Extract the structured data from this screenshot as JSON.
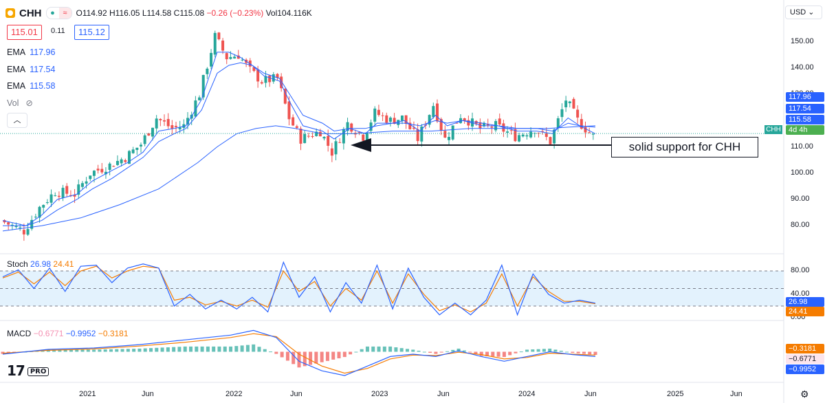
{
  "header": {
    "symbol": "CHH",
    "ohlc": {
      "o": "O114.92",
      "h": "H116.05",
      "l": "L114.58",
      "c": "C115.08",
      "chg": "−0.26 (−0.23%)",
      "vol": "Vol104.116K"
    },
    "bid": "115.01",
    "spread": "0.11",
    "ask": "115.12",
    "currency": "USD",
    "collapse_icon": "chevron-up-icon",
    "eye_icon": "eye-off-icon"
  },
  "legend": {
    "ema1": {
      "label": "EMA",
      "value": "117.96"
    },
    "ema2": {
      "label": "EMA",
      "value": "117.54"
    },
    "ema3": {
      "label": "EMA",
      "value": "115.58"
    },
    "vol": "Vol"
  },
  "colors": {
    "up": "#26a69a",
    "down": "#ef5350",
    "ema": "#2962ff",
    "stoch_k": "#2962ff",
    "stoch_d": "#f57c00",
    "macd": "#2962ff",
    "signal": "#f57c00",
    "stoch_band": "#e3f2fd"
  },
  "axis_tags": {
    "ema_top": "117.96",
    "ema_mid": "117.54",
    "ema_low": "115.58",
    "price": "CHH",
    "price_sub": "4d 4h",
    "stoch_k": "26.98",
    "stoch_d": "24.41",
    "macd_hist": "−0.3181",
    "macd_line": "−0.6771",
    "signal_line": "−0.9952"
  },
  "annotation": "solid support for CHH",
  "indicators": {
    "stoch": {
      "label": "Stoch",
      "k": "26.98",
      "d": "24.41"
    },
    "macd": {
      "label": "MACD",
      "v1": "−0.6771",
      "v2": "−0.9952",
      "v3": "−0.3181"
    }
  },
  "brand": {
    "logo": "17",
    "pro": "PRO"
  },
  "settings_icon": "gear-icon",
  "chart_data": [
    {
      "type": "candlestick",
      "title": "CHH",
      "y_ticks": [
        "150.00",
        "140.00",
        "130.00",
        "120.00",
        "110.00",
        "100.00",
        "90.00",
        "80.00"
      ],
      "ylim": [
        73,
        158
      ],
      "x_ticks": [
        "2021",
        "Jun",
        "2022",
        "Jun",
        "2023",
        "Jun",
        "2024",
        "Jun",
        "2025",
        "Jun"
      ],
      "close_path": [
        [
          0,
          82
        ],
        [
          6,
          78
        ],
        [
          10,
          87
        ],
        [
          14,
          93
        ],
        [
          19,
          92
        ],
        [
          23,
          100
        ],
        [
          28,
          103
        ],
        [
          32,
          106
        ],
        [
          36,
          111
        ],
        [
          40,
          121
        ],
        [
          44,
          117
        ],
        [
          47,
          118
        ],
        [
          51,
          130
        ],
        [
          55,
          152
        ],
        [
          58,
          144
        ],
        [
          61,
          145
        ],
        [
          64,
          139
        ],
        [
          67,
          135
        ],
        [
          71,
          136
        ],
        [
          74,
          121
        ],
        [
          77,
          113
        ],
        [
          82,
          116
        ],
        [
          85,
          108
        ],
        [
          89,
          119
        ],
        [
          93,
          114
        ],
        [
          96,
          123
        ],
        [
          100,
          120
        ],
        [
          103,
          121
        ],
        [
          107,
          113
        ],
        [
          111,
          126
        ],
        [
          114,
          113
        ],
        [
          118,
          122
        ],
        [
          123,
          117
        ],
        [
          127,
          118
        ],
        [
          132,
          114
        ],
        [
          137,
          117
        ],
        [
          141,
          112
        ],
        [
          145,
          128
        ],
        [
          148,
          120
        ],
        [
          152,
          114
        ]
      ],
      "ema_short": [
        [
          0,
          82
        ],
        [
          6,
          80
        ],
        [
          10,
          84
        ],
        [
          14,
          90
        ],
        [
          19,
          92
        ],
        [
          23,
          97
        ],
        [
          28,
          101
        ],
        [
          32,
          104
        ],
        [
          36,
          108
        ],
        [
          40,
          116
        ],
        [
          44,
          117
        ],
        [
          47,
          118
        ],
        [
          51,
          128
        ],
        [
          55,
          146
        ],
        [
          58,
          146
        ],
        [
          61,
          144
        ],
        [
          64,
          141
        ],
        [
          67,
          137
        ],
        [
          71,
          135
        ],
        [
          74,
          126
        ],
        [
          77,
          118
        ],
        [
          82,
          116
        ],
        [
          85,
          113
        ],
        [
          89,
          117
        ],
        [
          93,
          115
        ],
        [
          96,
          119
        ],
        [
          100,
          119
        ],
        [
          103,
          120
        ],
        [
          107,
          116
        ],
        [
          111,
          122
        ],
        [
          114,
          118
        ],
        [
          118,
          120
        ],
        [
          123,
          118
        ],
        [
          127,
          118
        ],
        [
          132,
          116
        ],
        [
          137,
          116
        ],
        [
          141,
          115
        ],
        [
          145,
          121
        ],
        [
          148,
          118
        ],
        [
          152,
          115
        ]
      ],
      "ema_mid": [
        [
          0,
          80
        ],
        [
          6,
          80
        ],
        [
          10,
          82
        ],
        [
          14,
          86
        ],
        [
          19,
          90
        ],
        [
          23,
          94
        ],
        [
          28,
          98
        ],
        [
          32,
          102
        ],
        [
          36,
          106
        ],
        [
          40,
          112
        ],
        [
          44,
          115
        ],
        [
          47,
          117
        ],
        [
          51,
          124
        ],
        [
          55,
          138
        ],
        [
          58,
          141
        ],
        [
          61,
          142
        ],
        [
          64,
          141
        ],
        [
          67,
          138
        ],
        [
          71,
          136
        ],
        [
          74,
          129
        ],
        [
          77,
          122
        ],
        [
          82,
          119
        ],
        [
          85,
          116
        ],
        [
          89,
          117
        ],
        [
          93,
          117
        ],
        [
          96,
          118
        ],
        [
          100,
          119
        ],
        [
          103,
          119
        ],
        [
          107,
          118
        ],
        [
          111,
          120
        ],
        [
          114,
          119
        ],
        [
          118,
          120
        ],
        [
          123,
          119
        ],
        [
          127,
          118
        ],
        [
          132,
          117
        ],
        [
          137,
          117
        ],
        [
          141,
          116
        ],
        [
          145,
          119
        ],
        [
          148,
          118
        ],
        [
          152,
          117.5
        ]
      ],
      "ema_long": [
        [
          0,
          78
        ],
        [
          10,
          80
        ],
        [
          20,
          83
        ],
        [
          30,
          88
        ],
        [
          40,
          94
        ],
        [
          50,
          104
        ],
        [
          55,
          110
        ],
        [
          60,
          115
        ],
        [
          65,
          117
        ],
        [
          70,
          118
        ],
        [
          75,
          117
        ],
        [
          82,
          115
        ],
        [
          90,
          115
        ],
        [
          100,
          116
        ],
        [
          110,
          116
        ],
        [
          120,
          117
        ],
        [
          130,
          117
        ],
        [
          140,
          117
        ],
        [
          145,
          117.5
        ],
        [
          152,
          118
        ]
      ],
      "support_level": 109.5,
      "series": [
        {
          "name": "EMA",
          "value": 117.96
        },
        {
          "name": "EMA",
          "value": 117.54
        },
        {
          "name": "EMA",
          "value": 115.58
        }
      ]
    },
    {
      "type": "line",
      "title": "Stoch",
      "y_ticks": [
        "80.00",
        "40.00",
        "0.00"
      ],
      "ylim": [
        0,
        100
      ],
      "band": [
        20,
        80
      ],
      "k_path": [
        [
          0,
          70
        ],
        [
          3,
          82
        ],
        [
          6,
          50
        ],
        [
          9,
          85
        ],
        [
          12,
          45
        ],
        [
          15,
          88
        ],
        [
          18,
          90
        ],
        [
          21,
          60
        ],
        [
          24,
          85
        ],
        [
          27,
          92
        ],
        [
          30,
          85
        ],
        [
          33,
          20
        ],
        [
          36,
          40
        ],
        [
          39,
          15
        ],
        [
          42,
          30
        ],
        [
          45,
          15
        ],
        [
          48,
          35
        ],
        [
          51,
          10
        ],
        [
          54,
          95
        ],
        [
          57,
          35
        ],
        [
          60,
          70
        ],
        [
          63,
          10
        ],
        [
          66,
          60
        ],
        [
          69,
          25
        ],
        [
          72,
          90
        ],
        [
          75,
          15
        ],
        [
          78,
          85
        ],
        [
          81,
          35
        ],
        [
          84,
          5
        ],
        [
          87,
          25
        ],
        [
          90,
          5
        ],
        [
          93,
          30
        ],
        [
          96,
          90
        ],
        [
          99,
          5
        ],
        [
          102,
          75
        ],
        [
          105,
          40
        ],
        [
          108,
          25
        ],
        [
          111,
          30
        ],
        [
          114,
          25
        ]
      ],
      "d_path": [
        [
          0,
          68
        ],
        [
          3,
          78
        ],
        [
          6,
          58
        ],
        [
          9,
          78
        ],
        [
          12,
          55
        ],
        [
          15,
          80
        ],
        [
          18,
          88
        ],
        [
          21,
          68
        ],
        [
          24,
          80
        ],
        [
          27,
          88
        ],
        [
          30,
          85
        ],
        [
          33,
          30
        ],
        [
          36,
          35
        ],
        [
          39,
          22
        ],
        [
          42,
          28
        ],
        [
          45,
          20
        ],
        [
          48,
          30
        ],
        [
          51,
          18
        ],
        [
          54,
          80
        ],
        [
          57,
          45
        ],
        [
          60,
          62
        ],
        [
          63,
          20
        ],
        [
          66,
          50
        ],
        [
          69,
          30
        ],
        [
          72,
          80
        ],
        [
          75,
          25
        ],
        [
          78,
          75
        ],
        [
          81,
          40
        ],
        [
          84,
          12
        ],
        [
          87,
          22
        ],
        [
          90,
          10
        ],
        [
          93,
          25
        ],
        [
          96,
          75
        ],
        [
          99,
          20
        ],
        [
          102,
          70
        ],
        [
          105,
          45
        ],
        [
          108,
          28
        ],
        [
          111,
          28
        ],
        [
          114,
          24
        ]
      ]
    },
    {
      "type": "bar",
      "title": "MACD",
      "ylim": [
        -6,
        6
      ],
      "macd_path": [
        [
          0,
          -0.5
        ],
        [
          8,
          0.5
        ],
        [
          16,
          0.8
        ],
        [
          24,
          1.5
        ],
        [
          32,
          2.5
        ],
        [
          40,
          3.5
        ],
        [
          44,
          4.5
        ],
        [
          48,
          3.0
        ],
        [
          52,
          -2.0
        ],
        [
          56,
          -4.0
        ],
        [
          60,
          -5.0
        ],
        [
          64,
          -3.0
        ],
        [
          68,
          -1.0
        ],
        [
          72,
          -0.5
        ],
        [
          76,
          -1.0
        ],
        [
          80,
          0.2
        ],
        [
          84,
          -1.0
        ],
        [
          88,
          -2.0
        ],
        [
          92,
          -1.0
        ],
        [
          96,
          0.0
        ],
        [
          100,
          -0.6
        ],
        [
          104,
          -1.0
        ]
      ],
      "signal_path": [
        [
          0,
          -0.3
        ],
        [
          8,
          0.3
        ],
        [
          16,
          0.6
        ],
        [
          24,
          1.2
        ],
        [
          32,
          2.0
        ],
        [
          40,
          3.0
        ],
        [
          44,
          3.8
        ],
        [
          48,
          3.2
        ],
        [
          52,
          -0.5
        ],
        [
          56,
          -3.0
        ],
        [
          60,
          -4.5
        ],
        [
          64,
          -3.5
        ],
        [
          68,
          -1.5
        ],
        [
          72,
          -0.7
        ],
        [
          76,
          -0.8
        ],
        [
          80,
          -0.1
        ],
        [
          84,
          -0.6
        ],
        [
          88,
          -1.5
        ],
        [
          92,
          -1.2
        ],
        [
          96,
          -0.3
        ],
        [
          100,
          -0.5
        ],
        [
          104,
          -0.7
        ]
      ]
    }
  ]
}
